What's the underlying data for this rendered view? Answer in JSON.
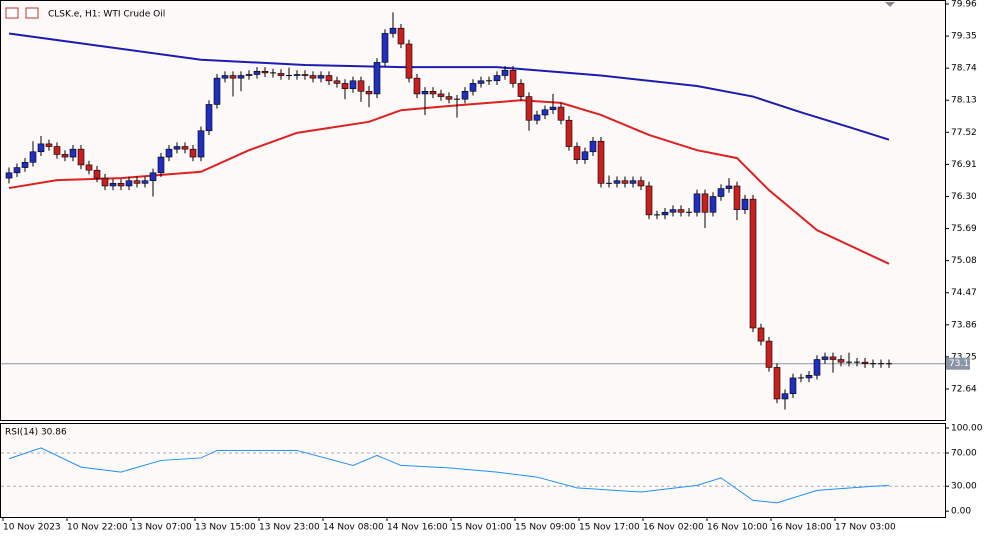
{
  "chart_data": {
    "type": "candlestick",
    "title": "CLSK.e, H1:  WTI Crude Oil",
    "candles": [
      [
        76.65,
        76.85,
        76.55,
        76.75
      ],
      [
        76.75,
        76.93,
        76.67,
        76.85
      ],
      [
        76.85,
        77.03,
        76.77,
        76.95
      ],
      [
        76.95,
        77.35,
        76.87,
        77.15
      ],
      [
        77.15,
        77.45,
        77.07,
        77.3
      ],
      [
        77.3,
        77.38,
        77.17,
        77.25
      ],
      [
        77.25,
        77.33,
        77.02,
        77.1
      ],
      [
        77.1,
        77.18,
        76.97,
        77.05
      ],
      [
        77.05,
        77.28,
        76.97,
        77.2
      ],
      [
        77.2,
        77.28,
        76.82,
        76.9
      ],
      [
        76.9,
        76.98,
        76.72,
        76.8
      ],
      [
        76.8,
        76.88,
        76.57,
        76.65
      ],
      [
        76.65,
        76.73,
        76.42,
        76.5
      ],
      [
        76.5,
        76.63,
        76.42,
        76.55
      ],
      [
        76.55,
        76.63,
        76.42,
        76.5
      ],
      [
        76.5,
        76.68,
        76.42,
        76.6
      ],
      [
        76.6,
        76.68,
        76.47,
        76.55
      ],
      [
        76.55,
        76.68,
        76.47,
        76.6
      ],
      [
        76.6,
        76.83,
        76.3,
        76.75
      ],
      [
        76.75,
        77.13,
        76.67,
        77.05
      ],
      [
        77.05,
        77.28,
        76.97,
        77.2
      ],
      [
        77.2,
        77.33,
        77.12,
        77.25
      ],
      [
        77.25,
        77.33,
        77.12,
        77.2
      ],
      [
        77.2,
        77.28,
        76.97,
        77.05
      ],
      [
        77.05,
        77.63,
        76.97,
        77.55
      ],
      [
        77.55,
        78.13,
        77.47,
        78.05
      ],
      [
        78.05,
        78.63,
        77.97,
        78.55
      ],
      [
        78.55,
        78.68,
        78.47,
        78.6
      ],
      [
        78.6,
        78.68,
        78.2,
        78.55
      ],
      [
        78.55,
        78.68,
        78.3,
        78.6
      ],
      [
        78.6,
        78.7,
        78.52,
        78.62
      ],
      [
        78.62,
        78.76,
        78.54,
        78.68
      ],
      [
        78.68,
        78.76,
        78.57,
        78.65
      ],
      [
        78.65,
        78.73,
        78.56,
        78.64
      ],
      [
        78.64,
        78.72,
        78.52,
        78.6
      ],
      [
        78.6,
        78.75,
        78.52,
        78.6
      ],
      [
        78.6,
        78.7,
        78.52,
        78.62
      ],
      [
        78.62,
        78.7,
        78.52,
        78.6
      ],
      [
        78.6,
        78.68,
        78.47,
        78.55
      ],
      [
        78.55,
        78.68,
        78.47,
        78.6
      ],
      [
        78.6,
        78.68,
        78.42,
        78.5
      ],
      [
        78.5,
        78.58,
        78.37,
        78.45
      ],
      [
        78.45,
        78.53,
        78.15,
        78.35
      ],
      [
        78.35,
        78.58,
        78.27,
        78.5
      ],
      [
        78.5,
        78.58,
        78.1,
        78.3
      ],
      [
        78.3,
        78.4,
        78.0,
        78.25
      ],
      [
        78.25,
        78.93,
        78.17,
        78.85
      ],
      [
        78.85,
        79.48,
        78.77,
        79.4
      ],
      [
        79.4,
        79.8,
        79.32,
        79.5
      ],
      [
        79.5,
        79.58,
        79.12,
        79.2
      ],
      [
        79.2,
        79.28,
        78.47,
        78.55
      ],
      [
        78.55,
        78.63,
        78.17,
        78.25
      ],
      [
        78.25,
        78.38,
        77.85,
        78.3
      ],
      [
        78.3,
        78.38,
        78.17,
        78.25
      ],
      [
        78.25,
        78.33,
        78.12,
        78.2
      ],
      [
        78.2,
        78.28,
        78.07,
        78.15
      ],
      [
        78.15,
        78.23,
        77.8,
        78.15
      ],
      [
        78.15,
        78.38,
        78.07,
        78.3
      ],
      [
        78.3,
        78.53,
        78.22,
        78.45
      ],
      [
        78.45,
        78.58,
        78.37,
        78.5
      ],
      [
        78.5,
        78.58,
        78.42,
        78.5
      ],
      [
        78.5,
        78.68,
        78.42,
        78.6
      ],
      [
        78.6,
        78.78,
        78.52,
        78.7
      ],
      [
        78.7,
        78.78,
        78.37,
        78.45
      ],
      [
        78.45,
        78.53,
        78.12,
        78.2
      ],
      [
        78.2,
        78.28,
        77.55,
        77.75
      ],
      [
        77.75,
        77.93,
        77.67,
        77.85
      ],
      [
        77.85,
        78.03,
        77.77,
        77.95
      ],
      [
        77.95,
        78.25,
        77.87,
        78.0
      ],
      [
        78.0,
        78.08,
        77.67,
        77.75
      ],
      [
        77.75,
        77.83,
        77.17,
        77.25
      ],
      [
        77.25,
        77.33,
        76.92,
        77.0
      ],
      [
        77.0,
        77.23,
        76.92,
        77.15
      ],
      [
        77.15,
        77.43,
        77.07,
        77.35
      ],
      [
        77.35,
        77.43,
        76.47,
        76.55
      ],
      [
        76.55,
        76.7,
        76.47,
        76.55
      ],
      [
        76.55,
        76.68,
        76.47,
        76.6
      ],
      [
        76.6,
        76.68,
        76.47,
        76.55
      ],
      [
        76.55,
        76.68,
        76.47,
        76.6
      ],
      [
        76.6,
        76.68,
        76.42,
        76.5
      ],
      [
        76.5,
        76.58,
        75.87,
        75.95
      ],
      [
        75.95,
        76.03,
        75.87,
        75.95
      ],
      [
        75.95,
        76.08,
        75.87,
        76.0
      ],
      [
        76.0,
        76.13,
        75.92,
        76.05
      ],
      [
        76.05,
        76.13,
        75.92,
        76.0
      ],
      [
        76.0,
        76.08,
        75.92,
        76.0
      ],
      [
        76.0,
        76.43,
        75.92,
        76.35
      ],
      [
        76.35,
        76.43,
        75.7,
        76.0
      ],
      [
        76.0,
        76.38,
        75.92,
        76.3
      ],
      [
        76.3,
        76.53,
        76.22,
        76.45
      ],
      [
        76.45,
        76.65,
        76.37,
        76.5
      ],
      [
        76.5,
        76.58,
        75.85,
        76.05
      ],
      [
        76.05,
        76.33,
        75.97,
        76.25
      ],
      [
        76.25,
        76.33,
        73.72,
        73.8
      ],
      [
        73.8,
        73.88,
        73.47,
        73.55
      ],
      [
        73.55,
        73.63,
        72.97,
        73.05
      ],
      [
        73.05,
        73.13,
        72.37,
        72.45
      ],
      [
        72.45,
        72.63,
        72.25,
        72.55
      ],
      [
        72.55,
        72.93,
        72.47,
        72.85
      ],
      [
        72.85,
        72.93,
        72.77,
        72.85
      ],
      [
        72.85,
        72.98,
        72.77,
        72.9
      ],
      [
        72.9,
        73.28,
        72.82,
        73.2
      ],
      [
        73.2,
        73.33,
        73.12,
        73.25
      ],
      [
        73.25,
        73.33,
        72.95,
        73.2
      ],
      [
        73.2,
        73.28,
        73.07,
        73.15
      ],
      [
        73.15,
        73.33,
        73.07,
        73.15
      ],
      [
        73.15,
        73.23,
        73.07,
        73.15
      ],
      [
        73.15,
        73.23,
        73.04,
        73.12
      ],
      [
        73.12,
        73.2,
        73.04,
        73.12
      ],
      [
        73.12,
        73.2,
        73.04,
        73.12
      ],
      [
        73.12,
        73.2,
        73.04,
        73.12
      ]
    ],
    "bull_color": "#1f2fbf",
    "bear_color": "#c8201e",
    "ma_lines": [
      {
        "color": "#1c1cb4",
        "x": [
          0,
          12,
          24,
          37,
          49,
          61,
          74,
          86,
          93,
          99,
          105,
          110
        ],
        "values": [
          79.4,
          79.15,
          78.9,
          78.8,
          78.76,
          78.76,
          78.6,
          78.4,
          78.2,
          77.9,
          77.62,
          77.38
        ]
      },
      {
        "color": "#e02020",
        "x": [
          0,
          6,
          14,
          24,
          30,
          36,
          45,
          49,
          55,
          64,
          69,
          74,
          80,
          86,
          91,
          95,
          101,
          110
        ],
        "values": [
          76.46,
          76.61,
          76.65,
          76.77,
          77.18,
          77.51,
          77.72,
          77.94,
          78.02,
          78.13,
          78.08,
          77.85,
          77.47,
          77.18,
          77.03,
          76.42,
          75.66,
          75.02
        ]
      }
    ],
    "ylim": [
      72.05,
      79.96
    ],
    "yticks": [
      {
        "value": 79.96,
        "label": "79.96"
      },
      {
        "value": 79.35,
        "label": "79.35"
      },
      {
        "value": 78.74,
        "label": "78.74"
      },
      {
        "value": 78.13,
        "label": "78.13"
      },
      {
        "value": 77.52,
        "label": "77.52"
      },
      {
        "value": 76.91,
        "label": "76.91"
      },
      {
        "value": 76.3,
        "label": "76.30"
      },
      {
        "value": 75.69,
        "label": "75.69"
      },
      {
        "value": 75.08,
        "label": "75.08"
      },
      {
        "value": 74.47,
        "label": "74.47"
      },
      {
        "value": 73.86,
        "label": "73.86"
      },
      {
        "value": 73.25,
        "label": "73.25"
      },
      {
        "value": 72.64,
        "label": "72.64"
      }
    ],
    "last_price": {
      "value": 73.12,
      "label": "73.12"
    },
    "time_labels": [
      "10 Nov 2023",
      "10 Nov 22:00",
      "13 Nov 07:00",
      "13 Nov 15:00",
      "13 Nov 23:00",
      "14 Nov 08:00",
      "14 Nov 16:00",
      "15 Nov 01:00",
      "15 Nov 09:00",
      "15 Nov 17:00",
      "16 Nov 02:00",
      "16 Nov 10:00",
      "16 Nov 18:00",
      "17 Nov 03:00"
    ],
    "rsi": {
      "label": "RSI(14) 30.86",
      "color": "#1e90ff",
      "x": [
        0,
        4,
        9,
        14,
        19,
        24,
        26,
        36,
        43,
        46,
        49,
        55,
        61,
        66,
        71,
        79,
        86,
        89,
        93,
        96,
        101,
        108,
        110
      ],
      "values": [
        63,
        76,
        53,
        47,
        61,
        64,
        73,
        73,
        55,
        67,
        55,
        52,
        47,
        41,
        28,
        23,
        31,
        40,
        13,
        10,
        25,
        30,
        30.86
      ],
      "ylim": [
        -7,
        106
      ],
      "yticks": [
        {
          "value": 100,
          "label": "100.00"
        },
        {
          "value": 70,
          "label": "70.00"
        },
        {
          "value": 30,
          "label": "30.00"
        },
        {
          "value": 0,
          "label": "0.00"
        }
      ],
      "levels": [
        70,
        30
      ]
    }
  }
}
